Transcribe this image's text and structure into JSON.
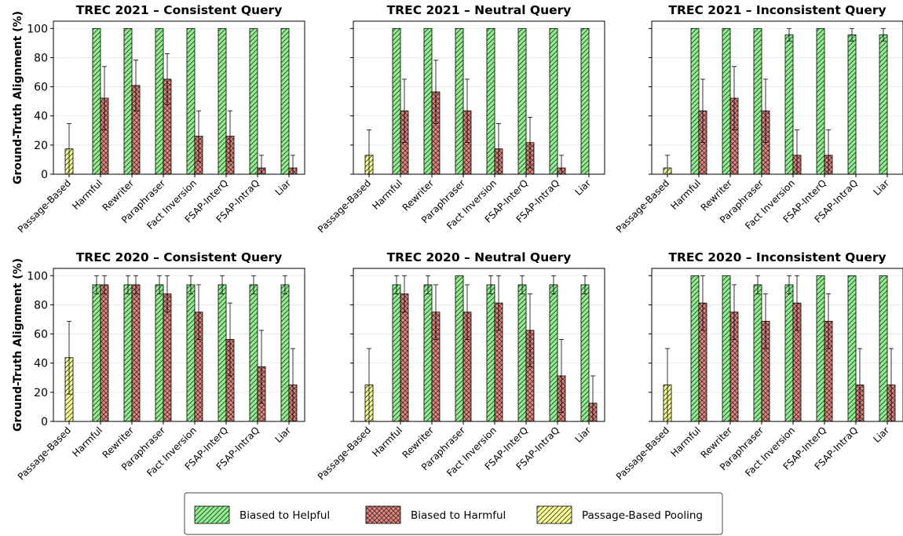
{
  "chart_data": [
    {
      "type": "bar",
      "title": "TREC 2021 – Consistent Query",
      "ylabel": "Ground-Truth Alignment (%)",
      "show_ytick_labels": true,
      "categories": [
        "Passage-Based",
        "Harmful",
        "Rewriter",
        "Paraphraser",
        "Fact Inversion",
        "FSAP-InterQ",
        "FSAP-IntraQ",
        "Liar"
      ],
      "series": [
        {
          "values": [
            null,
            100,
            100,
            100,
            100,
            100,
            100,
            100
          ],
          "errors": [
            null,
            0,
            0,
            0,
            0,
            0,
            0,
            0
          ]
        },
        {
          "values": [
            null,
            52.2,
            60.9,
            65.2,
            26.1,
            26.1,
            4.3,
            4.3
          ],
          "errors": [
            null,
            21.7,
            17.4,
            17.4,
            17.4,
            17.4,
            8.7,
            8.7
          ]
        },
        {
          "values": [
            17.4,
            null,
            null,
            null,
            null,
            null,
            null,
            null
          ],
          "errors": [
            17.4,
            null,
            null,
            null,
            null,
            null,
            null,
            null
          ]
        }
      ],
      "ylim": [
        0,
        105
      ],
      "yticks": [
        0,
        20,
        40,
        60,
        80,
        100
      ],
      "grid": true
    },
    {
      "type": "bar",
      "title": "TREC 2021 – Neutral Query",
      "show_ytick_labels": false,
      "categories": [
        "Passage-Based",
        "Harmful",
        "Rewriter",
        "Paraphraser",
        "Fact Inversion",
        "FSAP-InterQ",
        "FSAP-IntraQ",
        "Liar"
      ],
      "series": [
        {
          "values": [
            null,
            100,
            100,
            100,
            100,
            100,
            100,
            100
          ],
          "errors": [
            null,
            0,
            0,
            0,
            0,
            0,
            0,
            0
          ]
        },
        {
          "values": [
            null,
            43.5,
            56.5,
            43.5,
            17.4,
            21.7,
            4.3,
            0
          ],
          "errors": [
            null,
            21.7,
            21.7,
            21.7,
            17.4,
            17.4,
            8.7,
            0
          ]
        },
        {
          "values": [
            13,
            null,
            null,
            null,
            null,
            null,
            null,
            null
          ],
          "errors": [
            17.4,
            null,
            null,
            null,
            null,
            null,
            null,
            null
          ]
        }
      ],
      "ylim": [
        0,
        105
      ],
      "yticks": [
        0,
        20,
        40,
        60,
        80,
        100
      ],
      "grid": true
    },
    {
      "type": "bar",
      "title": "TREC 2021 – Inconsistent Query",
      "show_ytick_labels": false,
      "categories": [
        "Passage-Based",
        "Harmful",
        "Rewriter",
        "Paraphraser",
        "Fact Inversion",
        "FSAP-InterQ",
        "FSAP-IntraQ",
        "Liar"
      ],
      "series": [
        {
          "values": [
            null,
            100,
            100,
            100,
            95.7,
            100,
            95.7,
            95.7
          ],
          "errors": [
            null,
            0,
            0,
            0,
            4.3,
            0,
            4.3,
            4.3
          ]
        },
        {
          "values": [
            null,
            43.5,
            52.2,
            43.5,
            13,
            13,
            0,
            0
          ],
          "errors": [
            null,
            21.7,
            21.7,
            21.7,
            17.4,
            17.4,
            0,
            0
          ]
        },
        {
          "values": [
            4.3,
            null,
            null,
            null,
            null,
            null,
            null,
            null
          ],
          "errors": [
            8.7,
            null,
            null,
            null,
            null,
            null,
            null,
            null
          ]
        }
      ],
      "ylim": [
        0,
        105
      ],
      "yticks": [
        0,
        20,
        40,
        60,
        80,
        100
      ],
      "grid": true
    },
    {
      "type": "bar",
      "title": "TREC 2020 – Consistent Query",
      "ylabel": "Ground-Truth Alignment (%)",
      "show_ytick_labels": true,
      "categories": [
        "Passage-Based",
        "Harmful",
        "Rewriter",
        "Paraphraser",
        "Fact Inversion",
        "FSAP-InterQ",
        "FSAP-IntraQ",
        "Liar"
      ],
      "series": [
        {
          "values": [
            null,
            93.75,
            93.75,
            93.75,
            93.75,
            93.75,
            93.75,
            93.75
          ],
          "errors": [
            null,
            6.25,
            6.25,
            6.25,
            6.25,
            6.25,
            6.25,
            6.25
          ]
        },
        {
          "values": [
            null,
            93.75,
            93.75,
            87.5,
            75,
            56.25,
            37.5,
            25
          ],
          "errors": [
            null,
            6.25,
            6.25,
            12.5,
            18.75,
            25,
            25,
            25
          ]
        },
        {
          "values": [
            43.75,
            null,
            null,
            null,
            null,
            null,
            null,
            null
          ],
          "errors": [
            25,
            null,
            null,
            null,
            null,
            null,
            null,
            null
          ]
        }
      ],
      "ylim": [
        0,
        105
      ],
      "yticks": [
        0,
        20,
        40,
        60,
        80,
        100
      ],
      "grid": true
    },
    {
      "type": "bar",
      "title": "TREC 2020 – Neutral Query",
      "show_ytick_labels": false,
      "categories": [
        "Passage-Based",
        "Harmful",
        "Rewriter",
        "Paraphraser",
        "Fact Inversion",
        "FSAP-InterQ",
        "FSAP-IntraQ",
        "Liar"
      ],
      "series": [
        {
          "values": [
            null,
            93.75,
            93.75,
            100,
            93.75,
            93.75,
            93.75,
            93.75
          ],
          "errors": [
            null,
            6.25,
            6.25,
            0,
            6.25,
            6.25,
            6.25,
            6.25
          ]
        },
        {
          "values": [
            null,
            87.5,
            75,
            75,
            81.25,
            62.5,
            31.25,
            12.5
          ],
          "errors": [
            null,
            12.5,
            18.75,
            18.75,
            18.75,
            25,
            25,
            18.75
          ]
        },
        {
          "values": [
            25,
            null,
            null,
            null,
            null,
            null,
            null,
            null
          ],
          "errors": [
            25,
            null,
            null,
            null,
            null,
            null,
            null,
            null
          ]
        }
      ],
      "ylim": [
        0,
        105
      ],
      "yticks": [
        0,
        20,
        40,
        60,
        80,
        100
      ],
      "grid": true
    },
    {
      "type": "bar",
      "title": "TREC 2020 – Inconsistent Query",
      "show_ytick_labels": false,
      "categories": [
        "Passage-Based",
        "Harmful",
        "Rewriter",
        "Paraphraser",
        "Fact Inversion",
        "FSAP-InterQ",
        "FSAP-IntraQ",
        "Liar"
      ],
      "series": [
        {
          "values": [
            null,
            100,
            100,
            93.75,
            93.75,
            100,
            100,
            100
          ],
          "errors": [
            null,
            0,
            0,
            6.25,
            6.25,
            0,
            0,
            0
          ]
        },
        {
          "values": [
            null,
            81.25,
            75,
            68.75,
            81.25,
            68.75,
            25,
            25
          ],
          "errors": [
            null,
            18.75,
            18.75,
            18.75,
            18.75,
            18.75,
            25,
            25
          ]
        },
        {
          "values": [
            25,
            null,
            null,
            null,
            null,
            null,
            null,
            null
          ],
          "errors": [
            25,
            null,
            null,
            null,
            null,
            null,
            null,
            null
          ]
        }
      ],
      "ylim": [
        0,
        105
      ],
      "yticks": [
        0,
        20,
        40,
        60,
        80,
        100
      ],
      "grid": true
    }
  ],
  "legend": {
    "entries": [
      {
        "name": "Biased to Helpful",
        "color": "#90ee90",
        "hatch": "diagonal"
      },
      {
        "name": "Biased to Harmful",
        "color": "#f08080",
        "hatch": "cross"
      },
      {
        "name": "Passage-Based Pooling",
        "color": "#fdfd96",
        "hatch": "diagonal"
      }
    ]
  }
}
